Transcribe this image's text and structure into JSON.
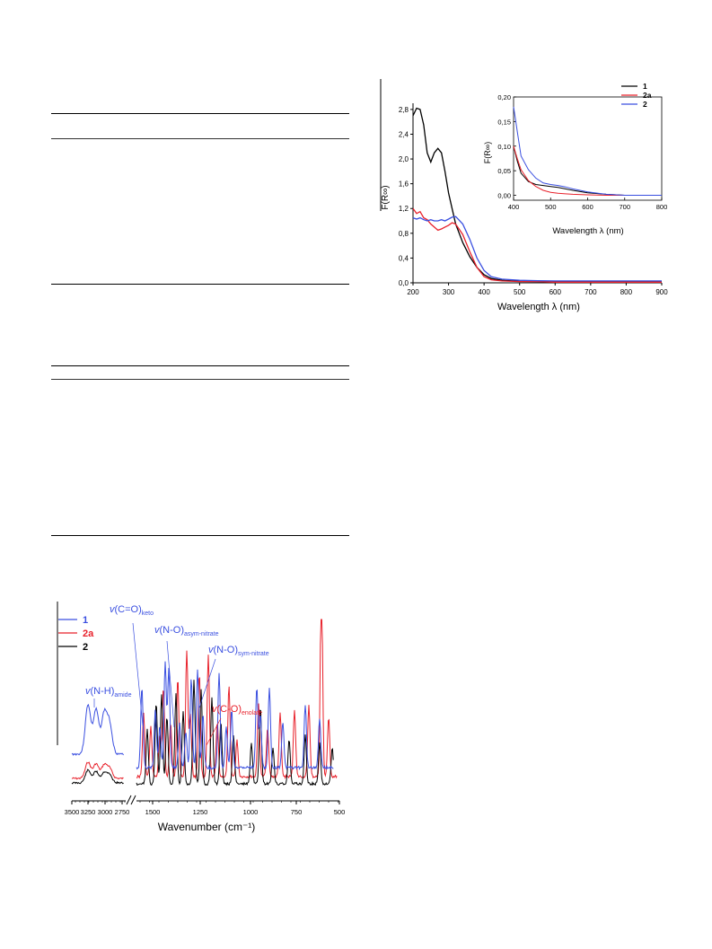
{
  "uv_chart": {
    "chart_data": {
      "type": "line",
      "xlabel": "Wavelength λ (nm)",
      "ylabel": "F(R∞)",
      "xlim": [
        200,
        900
      ],
      "ylim": [
        0,
        2.9
      ],
      "xticks": [
        "200",
        "300",
        "400",
        "500",
        "600",
        "700",
        "800",
        "900"
      ],
      "yticks": [
        "0,0",
        "0,4",
        "0,8",
        "1,2",
        "1,6",
        "2,0",
        "2,4",
        "2,8"
      ],
      "legend": "top-right",
      "series": [
        {
          "name": "1",
          "color": "#000000",
          "x": [
            200,
            210,
            220,
            230,
            240,
            250,
            260,
            270,
            280,
            290,
            300,
            310,
            320,
            340,
            360,
            380,
            400,
            420,
            450,
            500,
            550,
            600,
            700,
            800,
            900
          ],
          "y": [
            2.7,
            2.82,
            2.8,
            2.55,
            2.1,
            1.95,
            2.1,
            2.17,
            2.1,
            1.8,
            1.45,
            1.2,
            0.95,
            0.65,
            0.42,
            0.25,
            0.13,
            0.07,
            0.04,
            0.025,
            0.02,
            0.02,
            0.02,
            0.02,
            0.02
          ]
        },
        {
          "name": "2a",
          "color": "#e8212b",
          "x": [
            200,
            210,
            220,
            230,
            240,
            250,
            260,
            270,
            280,
            290,
            300,
            310,
            320,
            340,
            360,
            380,
            400,
            420,
            450,
            500,
            550,
            600,
            700,
            800,
            900
          ],
          "y": [
            1.2,
            1.12,
            1.15,
            1.05,
            1.02,
            0.95,
            0.9,
            0.85,
            0.87,
            0.9,
            0.93,
            0.97,
            0.95,
            0.78,
            0.5,
            0.25,
            0.1,
            0.05,
            0.03,
            0.02,
            0.02,
            0.01,
            0.01,
            0.01,
            0.01
          ]
        },
        {
          "name": "2",
          "color": "#3a4fe0",
          "x": [
            200,
            210,
            220,
            230,
            240,
            250,
            260,
            270,
            280,
            290,
            300,
            310,
            320,
            340,
            360,
            380,
            400,
            420,
            450,
            500,
            550,
            600,
            700,
            800,
            900
          ],
          "y": [
            1.05,
            1.03,
            1.05,
            1.02,
            1.0,
            1.02,
            1.0,
            1.0,
            1.02,
            1.0,
            1.03,
            1.06,
            1.07,
            0.95,
            0.7,
            0.4,
            0.2,
            0.1,
            0.06,
            0.04,
            0.035,
            0.03,
            0.03,
            0.03,
            0.03
          ]
        }
      ]
    },
    "inset": {
      "type": "line",
      "xlabel": "Wavelength λ (nm)",
      "ylabel": "F(R∞)",
      "xlim": [
        400,
        800
      ],
      "ylim": [
        -0.01,
        0.2
      ],
      "xticks": [
        "400",
        "500",
        "600",
        "700",
        "800"
      ],
      "yticks": [
        "0,00",
        "0,05",
        "0,10",
        "0,15",
        "0,20"
      ],
      "series": [
        {
          "name": "1",
          "color": "#000000",
          "x": [
            400,
            410,
            420,
            440,
            460,
            480,
            500,
            520,
            540,
            560,
            600,
            650,
            700,
            800
          ],
          "y": [
            0.1,
            0.07,
            0.045,
            0.028,
            0.022,
            0.02,
            0.018,
            0.016,
            0.013,
            0.01,
            0.005,
            0.002,
            0.0,
            0.0
          ]
        },
        {
          "name": "2a",
          "color": "#e8212b",
          "x": [
            400,
            410,
            420,
            440,
            460,
            480,
            500,
            520,
            540,
            560,
            600,
            650,
            700,
            800
          ],
          "y": [
            0.1,
            0.075,
            0.052,
            0.03,
            0.018,
            0.01,
            0.006,
            0.004,
            0.003,
            0.002,
            0.001,
            0.0,
            0.0,
            0.0
          ]
        },
        {
          "name": "2",
          "color": "#3a4fe0",
          "x": [
            400,
            405,
            410,
            420,
            440,
            460,
            480,
            500,
            520,
            540,
            560,
            600,
            650,
            700,
            800
          ],
          "y": [
            0.18,
            0.155,
            0.13,
            0.08,
            0.052,
            0.035,
            0.025,
            0.022,
            0.02,
            0.017,
            0.013,
            0.007,
            0.002,
            0.0,
            0.0
          ]
        }
      ]
    }
  },
  "ir_chart": {
    "chart_data": {
      "type": "line",
      "xlabel": "Wavenumber (cm⁻¹)",
      "xticks_left": [
        "3500",
        "3250",
        "3000",
        "2750"
      ],
      "xticks_right": [
        "1500",
        "1250",
        "1000",
        "750",
        "500"
      ],
      "legend": "top-left",
      "series": [
        {
          "name": "1",
          "color": "#3a4fe0"
        },
        {
          "name": "2a",
          "color": "#e8212b"
        },
        {
          "name": "2",
          "color": "#000000"
        }
      ],
      "annotations": [
        {
          "main": "v(C=O)",
          "sub": "keto",
          "color": "#3a4fe0"
        },
        {
          "main": "v(N-O)",
          "sub": "asym-nitrate",
          "color": "#3a4fe0"
        },
        {
          "main": "v(N-O)",
          "sub": "sym-nitrate",
          "color": "#3a4fe0"
        },
        {
          "main": "v(N-H)",
          "sub": "amide",
          "color": "#3a4fe0"
        },
        {
          "main": "v(C-O)",
          "sub": "enolate",
          "color": "#e8212b"
        }
      ]
    }
  }
}
